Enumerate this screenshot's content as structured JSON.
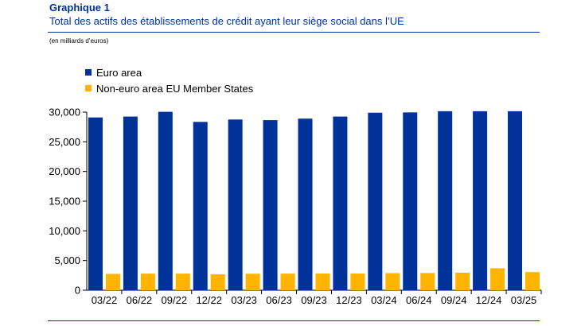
{
  "header": {
    "title": "Graphique 1",
    "subtitle": "Total des actifs des établissements de crédit ayant leur siège social dans l’UE",
    "unit_note": "(en milliards d’euros)"
  },
  "colors": {
    "euro_area": "#003299",
    "non_euro": "#FFB400",
    "rule": "#003299"
  },
  "chart_data": {
    "type": "bar",
    "categories": [
      "03/22",
      "06/22",
      "09/22",
      "12/22",
      "03/23",
      "06/23",
      "09/23",
      "12/23",
      "03/24",
      "06/24",
      "09/24",
      "12/24",
      "03/25"
    ],
    "series": [
      {
        "name": "Euro area",
        "values": [
          29100,
          29250,
          30050,
          28350,
          28750,
          28650,
          28900,
          29250,
          29900,
          29950,
          30150,
          30150,
          30150
        ]
      },
      {
        "name": "Non-euro area EU Member States",
        "values": [
          2750,
          2800,
          2800,
          2700,
          2780,
          2800,
          2820,
          2820,
          2880,
          2900,
          2950,
          3700,
          3050
        ]
      }
    ],
    "yticks": [
      "0",
      "5,000",
      "10,000",
      "15,000",
      "20,000",
      "25,000",
      "30,000"
    ],
    "ylim": [
      0,
      30000
    ],
    "legend_position": "top-left",
    "grid": false
  }
}
